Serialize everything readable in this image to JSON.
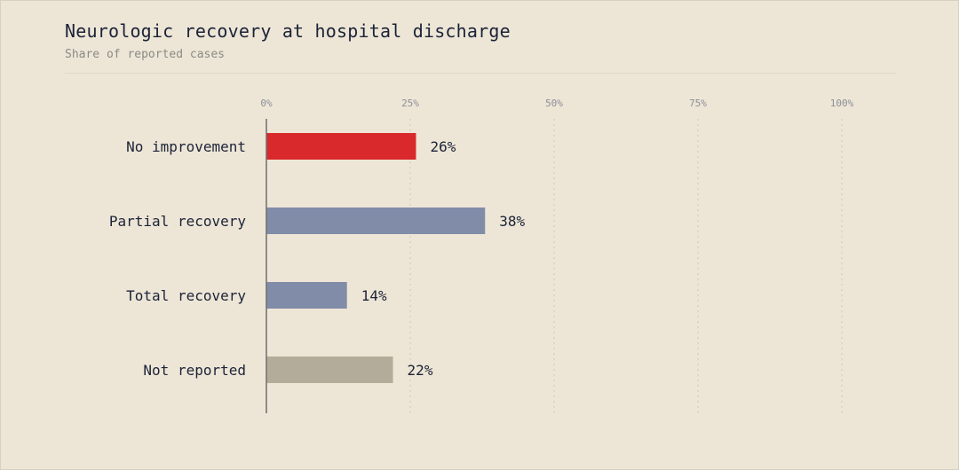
{
  "chart_data": {
    "type": "bar",
    "orientation": "horizontal",
    "title": "Neurologic recovery at hospital discharge",
    "subtitle": "Share of reported cases",
    "categories": [
      "No improvement",
      "Partial recovery",
      "Total recovery",
      "Not reported"
    ],
    "values": [
      26,
      38,
      14,
      22
    ],
    "value_labels": [
      "26%",
      "38%",
      "14%",
      "22%"
    ],
    "bar_colors": [
      "#d9292c",
      "#808ca8",
      "#808ca8",
      "#b3ac9a"
    ],
    "x_ticks": [
      0,
      25,
      50,
      75,
      100
    ],
    "x_tick_labels": [
      "0%",
      "25%",
      "50%",
      "75%",
      "100%"
    ],
    "xlim": [
      0,
      100
    ],
    "xlabel": "",
    "ylabel": "",
    "grid": "vertical-dotted",
    "legend": "none"
  }
}
